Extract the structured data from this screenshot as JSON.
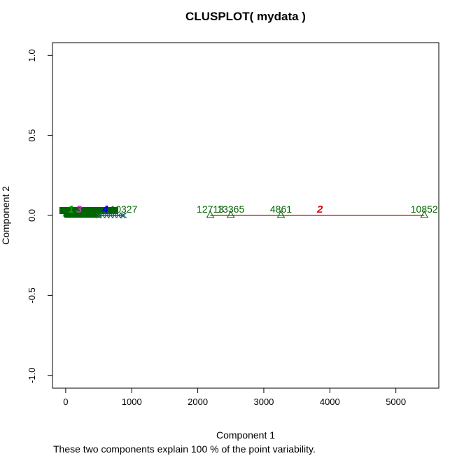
{
  "chart_data": {
    "type": "scatter",
    "title": "CLUSPLOT( mydata )",
    "xlabel": "Component 1",
    "ylabel": "Component 2",
    "caption": "These two components explain 100 % of the point variability.",
    "xlim": [
      -200,
      5650
    ],
    "ylim": [
      -1.08,
      1.08
    ],
    "x_ticks": [
      0,
      1000,
      2000,
      3000,
      4000,
      5000
    ],
    "y_ticks": [
      -1.0,
      -0.5,
      0.0,
      0.5,
      1.0
    ],
    "x_tick_labels": [
      "0",
      "1000",
      "2000",
      "3000",
      "4000",
      "5000"
    ],
    "y_tick_labels": [
      "-1.0",
      "-0.5",
      "0.0",
      "0.5",
      "1.0"
    ],
    "clusters": [
      {
        "label": "1",
        "center_x": 80,
        "color": "#00aa00",
        "x_range": [
          0,
          500
        ],
        "marker": "circle"
      },
      {
        "label": "2",
        "center_x": 3850,
        "color": "#dd0000",
        "x_range": [
          2190,
          5430
        ],
        "marker": "triangle"
      },
      {
        "label": "3",
        "center_x": 200,
        "color": "#cc33cc",
        "x_range": [
          20,
          380
        ],
        "marker": "plus"
      },
      {
        "label": "4",
        "center_x": 600,
        "color": "#0000dd",
        "x_range": [
          480,
          880
        ],
        "marker": "cross"
      }
    ],
    "labeled_points": [
      {
        "label": "12713",
        "x": 2190,
        "marker": "triangle"
      },
      {
        "label": "13365",
        "x": 2500,
        "marker": "triangle"
      },
      {
        "label": "4861",
        "x": 3260,
        "marker": "triangle"
      },
      {
        "label": "10852",
        "x": 5430,
        "marker": "triangle"
      },
      {
        "label": "10327",
        "x": 880,
        "marker": "cross"
      }
    ],
    "grid": false,
    "legend": "none"
  }
}
